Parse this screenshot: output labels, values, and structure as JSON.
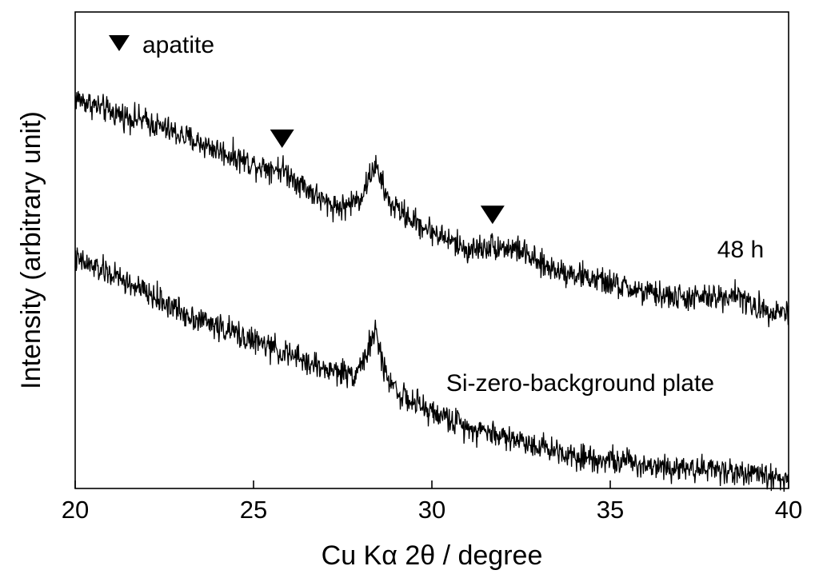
{
  "chart_data": {
    "type": "line",
    "xlabel": "Cu Kα 2θ / degree",
    "ylabel": "Intensity (arbitrary unit)",
    "xlim": [
      20,
      40
    ],
    "x_ticks": [
      20,
      25,
      30,
      35,
      40
    ],
    "y_ticks_shown": false,
    "grid": false,
    "legend": {
      "label": "apatite",
      "marker": "filled downward triangle",
      "placement": "top-left"
    },
    "series": [
      {
        "name": "48 h",
        "x": [
          20,
          21,
          22,
          23,
          24,
          25,
          25.8,
          26.5,
          27,
          27.5,
          28,
          28.4,
          28.8,
          29.5,
          30,
          30.5,
          31,
          31.7,
          32.5,
          33,
          34,
          35,
          36,
          37,
          38,
          38.5,
          39,
          40
        ],
        "values": [
          0.82,
          0.79,
          0.77,
          0.74,
          0.71,
          0.68,
          0.67,
          0.63,
          0.6,
          0.59,
          0.61,
          0.68,
          0.6,
          0.56,
          0.54,
          0.52,
          0.5,
          0.51,
          0.5,
          0.47,
          0.45,
          0.43,
          0.41,
          0.4,
          0.4,
          0.41,
          0.38,
          0.37
        ],
        "line_color": "#000000"
      },
      {
        "name": "Si-zero-background plate",
        "x": [
          20,
          21,
          22,
          23,
          24,
          25,
          26,
          27,
          27.8,
          28.1,
          28.4,
          28.7,
          29.2,
          30,
          31,
          32,
          33,
          34,
          35,
          36,
          37,
          38,
          39,
          40
        ],
        "values": [
          0.48,
          0.45,
          0.41,
          0.37,
          0.34,
          0.31,
          0.28,
          0.25,
          0.24,
          0.27,
          0.33,
          0.24,
          0.19,
          0.16,
          0.13,
          0.11,
          0.09,
          0.07,
          0.06,
          0.05,
          0.045,
          0.04,
          0.03,
          0.02
        ],
        "line_color": "#000000"
      }
    ],
    "annotations": [
      {
        "text": "48 h",
        "x": 38,
        "y": 0.485
      },
      {
        "text": "Si-zero-background plate",
        "x": 30.4,
        "y": 0.205
      }
    ],
    "apatite_markers": [
      {
        "x": 25.8,
        "y": 0.735
      },
      {
        "x": 31.7,
        "y": 0.575
      }
    ]
  }
}
